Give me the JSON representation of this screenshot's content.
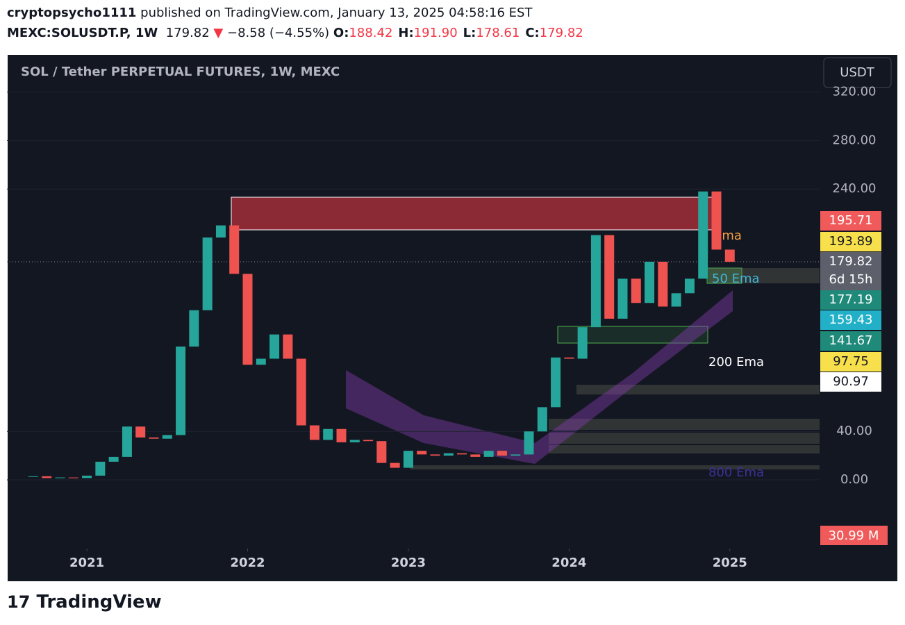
{
  "header": {
    "publisher": "cryptopsycho1111",
    "published": "published on TradingView.com, January 13, 2025 04:58:16 EST",
    "symbol": "MEXC:SOLUSDT.P, 1W",
    "last": "179.82",
    "arrow": "▼",
    "change": "−8.58 (−4.55%)",
    "ohlc": [
      {
        "key": "O:",
        "value": "188.42"
      },
      {
        "key": "H:",
        "value": "191.90"
      },
      {
        "key": "L:",
        "value": "178.61"
      },
      {
        "key": "C:",
        "value": "179.82"
      }
    ]
  },
  "chart_data": {
    "type": "candlestick",
    "title": "SOL / Tether PERPETUAL FUTURES, 1W, MEXC",
    "currency": "USDT",
    "close": [
      3,
      1.5,
      2,
      1.5,
      3.5,
      15,
      19,
      44,
      35,
      34,
      37,
      110,
      140,
      200,
      210,
      170,
      95,
      100,
      120,
      100,
      45,
      33,
      42,
      31,
      33,
      32,
      14,
      10,
      24,
      21,
      20,
      22,
      21,
      19,
      24,
      20,
      21,
      40,
      60,
      101,
      100,
      126,
      202,
      133,
      166,
      146,
      180,
      143,
      154,
      166,
      238,
      190,
      180
    ],
    "up_color": "#26a69a",
    "down_color": "#ef5350",
    "xlim": [
      -0.93,
      58.7
    ],
    "xticks": [
      {
        "value": 4,
        "label": "2021"
      },
      {
        "value": 16,
        "label": "2022"
      },
      {
        "value": 28,
        "label": "2023"
      },
      {
        "value": 40,
        "label": "2024"
      },
      {
        "value": 52,
        "label": "2025"
      }
    ],
    "ylim": [
      -56.7,
      344.4
    ],
    "yticks": [
      {
        "value": 0,
        "label": "0.00"
      },
      {
        "value": 40,
        "label": "40.00"
      },
      {
        "value": 240,
        "label": "240.00"
      },
      {
        "value": 280,
        "label": "280.00"
      },
      {
        "value": 320,
        "label": "320.00"
      }
    ],
    "annotations": [
      "Ema",
      "50 Ema",
      "200 Ema",
      "800 Ema"
    ],
    "price_labels": [
      {
        "value": 195.71,
        "color": "#f05a5a"
      },
      {
        "value": 193.89,
        "color": "#f7e04b"
      },
      {
        "value": 179.82,
        "color": "#5d606b"
      },
      {
        "value": 177.19,
        "color": "#1f8a7a"
      },
      {
        "value": 159.43,
        "color": "#22b0c8"
      },
      {
        "value": 141.67,
        "color": "#1f8a7a"
      },
      {
        "value": 97.75,
        "color": "#f7e04b"
      },
      {
        "value": 90.97,
        "color": "#ffffff"
      }
    ],
    "countdown": "6d 15h",
    "volume_label": "30.99 M"
  },
  "footer": {
    "brand": "TradingView"
  }
}
